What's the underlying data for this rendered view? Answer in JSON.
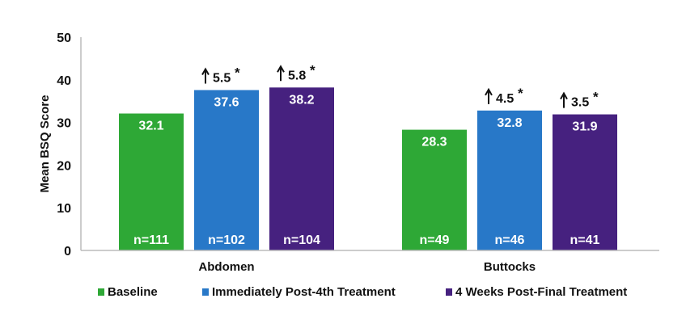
{
  "chart_data": {
    "type": "bar",
    "title": "",
    "xlabel": "",
    "ylabel": "Mean BSQ Score",
    "ylim": [
      0,
      50
    ],
    "yticks": [
      "0",
      "10",
      "20",
      "30",
      "40",
      "50"
    ],
    "grid": false,
    "legend_placement": "bottom",
    "categories": [
      "Abdomen",
      "Buttocks"
    ],
    "series": [
      {
        "name": "Baseline",
        "color": "#2ea836",
        "values": [
          32.1,
          28.3
        ],
        "labels": [
          "32.1",
          "28.3"
        ],
        "n": [
          "n=111",
          "n=49"
        ],
        "change": [
          "",
          ""
        ]
      },
      {
        "name": "Immediately Post-4th Treatment",
        "color": "#2878c8",
        "values": [
          37.6,
          32.8
        ],
        "labels": [
          "37.6",
          "32.8"
        ],
        "n": [
          "n=102",
          "n=46"
        ],
        "change": [
          "5.5",
          "4.5"
        ]
      },
      {
        "name": "4 Weeks Post-Final Treatment",
        "color": "#46217f",
        "values": [
          38.2,
          31.9
        ],
        "labels": [
          "38.2",
          "31.9"
        ],
        "n": [
          "n=104",
          "n=41"
        ],
        "change": [
          "5.8",
          "3.5"
        ]
      }
    ],
    "significance_marker": "*",
    "change_icon": "up-arrow-icon"
  }
}
